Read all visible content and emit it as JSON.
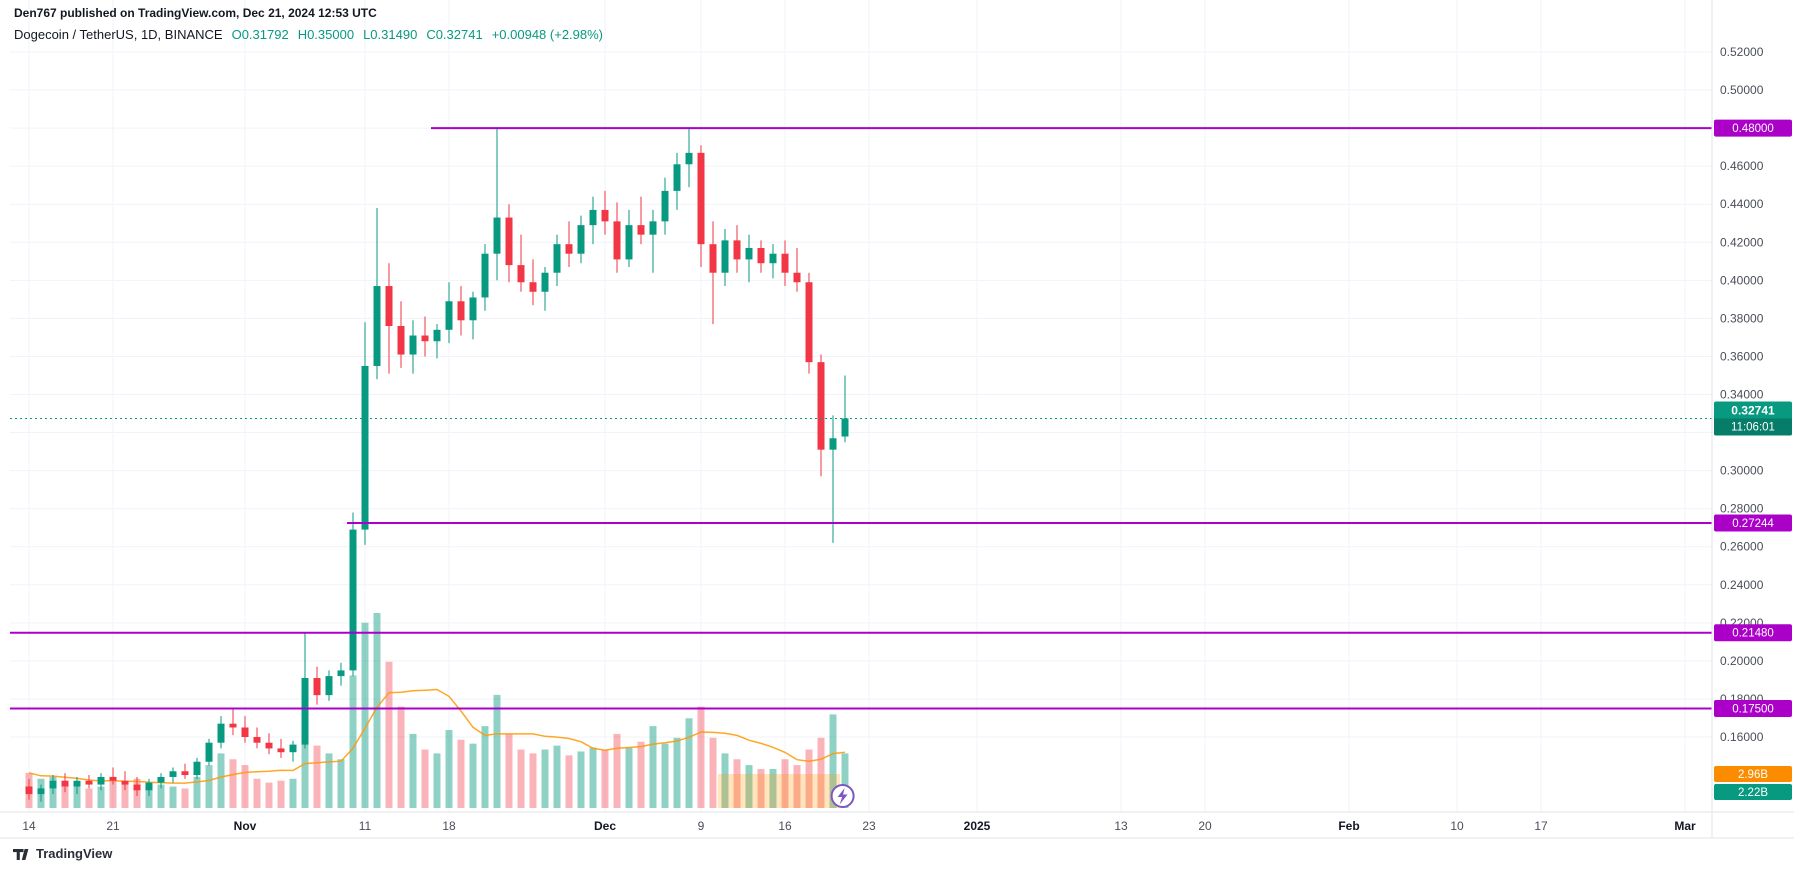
{
  "attribution": "Den767 published on TradingView.com, Dec 21, 2024 12:53 UTC",
  "header": {
    "symbol": "Dogecoin / TetherUS, 1D, BINANCE",
    "open": "O0.31792",
    "high": "H0.35000",
    "low": "L0.31490",
    "close": "C0.32741",
    "change": "+0.00948 (+2.98%)"
  },
  "footer": {
    "logo_text": "TradingView"
  },
  "colors": {
    "up": "#089981",
    "down": "#f23645",
    "vol_up": "rgba(8,153,129,0.45)",
    "vol_down": "rgba(242,54,69,0.38)",
    "level": "#aa00c8",
    "last_badge": "#089981",
    "vol_ma": "#ff9800",
    "grid": "#f0f3fa",
    "axis_text": "#4a4e59",
    "axis_line": "#e0e3eb",
    "text": "#131722"
  },
  "chart_data": {
    "type": "candlestick",
    "title": "Dogecoin / TetherUS, 1D, BINANCE",
    "ylim": [
      0.16,
      0.52
    ],
    "grid": true,
    "legend_position": "none",
    "grid_prices": [
      0.52,
      0.5,
      0.48,
      0.46,
      0.44,
      0.42,
      0.4,
      0.38,
      0.36,
      0.34,
      0.32,
      0.3,
      0.28,
      0.26,
      0.24,
      0.22,
      0.2,
      0.18,
      0.16
    ],
    "y_ticks": [
      {
        "label": "0.52000",
        "value": 0.52
      },
      {
        "label": "0.50000",
        "value": 0.5
      },
      {
        "label": "0.46000",
        "value": 0.46
      },
      {
        "label": "0.44000",
        "value": 0.44
      },
      {
        "label": "0.42000",
        "value": 0.42
      },
      {
        "label": "0.40000",
        "value": 0.4
      },
      {
        "label": "0.38000",
        "value": 0.38
      },
      {
        "label": "0.36000",
        "value": 0.36
      },
      {
        "label": "0.34000",
        "value": 0.34
      },
      {
        "label": "0.30000",
        "value": 0.3
      },
      {
        "label": "0.28000",
        "value": 0.28
      },
      {
        "label": "0.26000",
        "value": 0.26
      },
      {
        "label": "0.24000",
        "value": 0.24
      },
      {
        "label": "0.22000",
        "value": 0.22
      },
      {
        "label": "0.20000",
        "value": 0.2
      },
      {
        "label": "0.18000",
        "value": 0.18
      },
      {
        "label": "0.16000",
        "value": 0.16
      }
    ],
    "x_ticks": [
      {
        "label": "14",
        "i": 0,
        "major": false
      },
      {
        "label": "21",
        "i": 7,
        "major": false
      },
      {
        "label": "Nov",
        "i": 18,
        "major": true
      },
      {
        "label": "11",
        "i": 28,
        "major": false
      },
      {
        "label": "18",
        "i": 35,
        "major": false
      },
      {
        "label": "Dec",
        "i": 48,
        "major": true
      },
      {
        "label": "9",
        "i": 56,
        "major": false
      },
      {
        "label": "16",
        "i": 63,
        "major": false
      },
      {
        "label": "23",
        "i": 70,
        "major": false
      },
      {
        "label": "2025",
        "i": 79,
        "major": true
      },
      {
        "label": "13",
        "i": 91,
        "major": false
      },
      {
        "label": "20",
        "i": 98,
        "major": false
      },
      {
        "label": "Feb",
        "i": 110,
        "major": true
      },
      {
        "label": "10",
        "i": 119,
        "major": false
      },
      {
        "label": "17",
        "i": 126,
        "major": false
      },
      {
        "label": "Mar",
        "i": 138,
        "major": true
      }
    ],
    "levels": [
      {
        "label": "0.48000",
        "value": 0.48,
        "from_index": 34
      },
      {
        "label": "0.27244",
        "value": 0.27244,
        "from_index": 27
      },
      {
        "label": "0.21480",
        "value": 0.2148,
        "from_index": -1
      },
      {
        "label": "0.17500",
        "value": 0.175,
        "from_index": -1
      }
    ],
    "last": {
      "price": "0.32741",
      "value": 0.32741,
      "countdown": "11:06:01"
    },
    "volume_badges": [
      {
        "label": "2.96B",
        "bg": "#fb8c00"
      },
      {
        "label": "2.22B",
        "bg": "#089981"
      }
    ],
    "volume_highlight": {
      "from_index": 57.4,
      "to_index": 67.6,
      "color": "rgba(255,152,0,0.26)"
    },
    "marker": {
      "type": "flash",
      "at_index": 67.8
    },
    "candles": [
      [
        0.134,
        0.138,
        0.127,
        0.13,
        0.18
      ],
      [
        0.13,
        0.135,
        0.126,
        0.133,
        0.15
      ],
      [
        0.133,
        0.14,
        0.13,
        0.137,
        0.16
      ],
      [
        0.137,
        0.141,
        0.131,
        0.134,
        0.14
      ],
      [
        0.134,
        0.139,
        0.13,
        0.137,
        0.13
      ],
      [
        0.137,
        0.14,
        0.133,
        0.135,
        0.1
      ],
      [
        0.135,
        0.141,
        0.132,
        0.139,
        0.11
      ],
      [
        0.139,
        0.144,
        0.135,
        0.137,
        0.16
      ],
      [
        0.137,
        0.142,
        0.132,
        0.135,
        0.14
      ],
      [
        0.135,
        0.139,
        0.129,
        0.132,
        0.15
      ],
      [
        0.132,
        0.138,
        0.129,
        0.136,
        0.13
      ],
      [
        0.136,
        0.141,
        0.133,
        0.139,
        0.12
      ],
      [
        0.139,
        0.144,
        0.136,
        0.142,
        0.11
      ],
      [
        0.142,
        0.146,
        0.138,
        0.14,
        0.1
      ],
      [
        0.14,
        0.149,
        0.138,
        0.147,
        0.16
      ],
      [
        0.147,
        0.159,
        0.145,
        0.157,
        0.22
      ],
      [
        0.157,
        0.171,
        0.154,
        0.167,
        0.28
      ],
      [
        0.167,
        0.175,
        0.161,
        0.165,
        0.25
      ],
      [
        0.165,
        0.171,
        0.157,
        0.16,
        0.22
      ],
      [
        0.16,
        0.165,
        0.154,
        0.157,
        0.15
      ],
      [
        0.157,
        0.162,
        0.151,
        0.154,
        0.13
      ],
      [
        0.154,
        0.159,
        0.149,
        0.152,
        0.14
      ],
      [
        0.152,
        0.158,
        0.147,
        0.156,
        0.15
      ],
      [
        0.156,
        0.215,
        0.154,
        0.191,
        0.5
      ],
      [
        0.191,
        0.197,
        0.177,
        0.182,
        0.32
      ],
      [
        0.182,
        0.195,
        0.179,
        0.192,
        0.28
      ],
      [
        0.192,
        0.199,
        0.187,
        0.195,
        0.25
      ],
      [
        0.195,
        0.278,
        0.192,
        0.269,
        0.68
      ],
      [
        0.269,
        0.378,
        0.261,
        0.355,
        0.95
      ],
      [
        0.355,
        0.438,
        0.348,
        0.397,
        1.0
      ],
      [
        0.397,
        0.409,
        0.351,
        0.376,
        0.75
      ],
      [
        0.376,
        0.389,
        0.354,
        0.361,
        0.52
      ],
      [
        0.361,
        0.379,
        0.351,
        0.371,
        0.38
      ],
      [
        0.371,
        0.381,
        0.36,
        0.368,
        0.3
      ],
      [
        0.368,
        0.377,
        0.359,
        0.374,
        0.28
      ],
      [
        0.374,
        0.399,
        0.367,
        0.389,
        0.4
      ],
      [
        0.389,
        0.397,
        0.371,
        0.379,
        0.35
      ],
      [
        0.379,
        0.394,
        0.369,
        0.391,
        0.33
      ],
      [
        0.391,
        0.419,
        0.384,
        0.414,
        0.42
      ],
      [
        0.414,
        0.48,
        0.4,
        0.433,
        0.58
      ],
      [
        0.433,
        0.44,
        0.399,
        0.408,
        0.38
      ],
      [
        0.408,
        0.424,
        0.394,
        0.399,
        0.3
      ],
      [
        0.399,
        0.411,
        0.387,
        0.394,
        0.28
      ],
      [
        0.394,
        0.407,
        0.384,
        0.404,
        0.3
      ],
      [
        0.404,
        0.424,
        0.397,
        0.419,
        0.32
      ],
      [
        0.419,
        0.431,
        0.407,
        0.414,
        0.27
      ],
      [
        0.414,
        0.434,
        0.409,
        0.429,
        0.29
      ],
      [
        0.429,
        0.444,
        0.419,
        0.437,
        0.31
      ],
      [
        0.437,
        0.447,
        0.424,
        0.431,
        0.3
      ],
      [
        0.431,
        0.441,
        0.404,
        0.411,
        0.38
      ],
      [
        0.411,
        0.437,
        0.407,
        0.429,
        0.31
      ],
      [
        0.429,
        0.444,
        0.419,
        0.424,
        0.34
      ],
      [
        0.424,
        0.437,
        0.404,
        0.431,
        0.42
      ],
      [
        0.431,
        0.454,
        0.424,
        0.447,
        0.33
      ],
      [
        0.447,
        0.467,
        0.437,
        0.461,
        0.36
      ],
      [
        0.461,
        0.48,
        0.449,
        0.467,
        0.46
      ],
      [
        0.467,
        0.471,
        0.407,
        0.419,
        0.52
      ],
      [
        0.419,
        0.431,
        0.377,
        0.404,
        0.36
      ],
      [
        0.404,
        0.427,
        0.397,
        0.421,
        0.28
      ],
      [
        0.421,
        0.429,
        0.404,
        0.411,
        0.25
      ],
      [
        0.411,
        0.424,
        0.399,
        0.417,
        0.22
      ],
      [
        0.417,
        0.421,
        0.404,
        0.409,
        0.2
      ],
      [
        0.409,
        0.419,
        0.401,
        0.414,
        0.2
      ],
      [
        0.414,
        0.421,
        0.397,
        0.404,
        0.25
      ],
      [
        0.404,
        0.417,
        0.394,
        0.399,
        0.22
      ],
      [
        0.399,
        0.404,
        0.351,
        0.357,
        0.3
      ],
      [
        0.357,
        0.361,
        0.297,
        0.311,
        0.36
      ],
      [
        0.311,
        0.329,
        0.262,
        0.317,
        0.48
      ],
      [
        0.31792,
        0.35,
        0.3149,
        0.32741,
        0.28
      ]
    ]
  }
}
